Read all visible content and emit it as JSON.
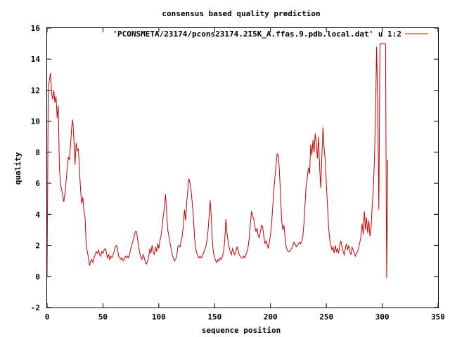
{
  "chart_data": {
    "type": "line",
    "title": "consensus based quality prediction",
    "xlabel": "sequence position",
    "ylabel": "quality",
    "xlim": [
      0,
      350
    ],
    "ylim": [
      -2,
      16
    ],
    "xticks": [
      "0",
      "50",
      "100",
      "150",
      "200",
      "250",
      "300",
      "350"
    ],
    "yticks": [
      "-2",
      "0",
      "2",
      "4",
      "6",
      "8",
      "10",
      "12",
      "14",
      "16"
    ],
    "legend_position": "top-right",
    "grid": false,
    "series": [
      {
        "name": "'PCONSMETA/23174/pcons23174.2I5K_A.ffas.9.pdb.local.dat' u 1:2",
        "color": "#cc0000",
        "points": [
          [
            0,
            0
          ],
          [
            1,
            12.2
          ],
          [
            2,
            12.6
          ],
          [
            3,
            13.1
          ],
          [
            4,
            11.8
          ],
          [
            5,
            11.4
          ],
          [
            6,
            12.0
          ],
          [
            7,
            11.2
          ],
          [
            8,
            11.6
          ],
          [
            9,
            10.2
          ],
          [
            10,
            11.0
          ],
          [
            11,
            7.0
          ],
          [
            12,
            5.9
          ],
          [
            13,
            5.6
          ],
          [
            14,
            5.2
          ],
          [
            15,
            4.8
          ],
          [
            16,
            5.4
          ],
          [
            17,
            6.1
          ],
          [
            18,
            7.0
          ],
          [
            19,
            7.7
          ],
          [
            20,
            7.5
          ],
          [
            21,
            8.5
          ],
          [
            22,
            9.6
          ],
          [
            23,
            10.1
          ],
          [
            24,
            8.8
          ],
          [
            25,
            7.2
          ],
          [
            26,
            8.6
          ],
          [
            27,
            8.1
          ],
          [
            28,
            8.2
          ],
          [
            29,
            6.8
          ],
          [
            30,
            5.5
          ],
          [
            31,
            4.7
          ],
          [
            32,
            5.1
          ],
          [
            33,
            4.2
          ],
          [
            34,
            3.8
          ],
          [
            35,
            2.0
          ],
          [
            36,
            1.6
          ],
          [
            37,
            1.2
          ],
          [
            38,
            0.7
          ],
          [
            39,
            1.0
          ],
          [
            40,
            1.1
          ],
          [
            41,
            0.9
          ],
          [
            42,
            1.2
          ],
          [
            43,
            1.4
          ],
          [
            44,
            1.6
          ],
          [
            45,
            1.5
          ],
          [
            46,
            1.7
          ],
          [
            47,
            1.4
          ],
          [
            48,
            1.3
          ],
          [
            49,
            1.6
          ],
          [
            50,
            1.5
          ],
          [
            51,
            1.7
          ],
          [
            52,
            1.8
          ],
          [
            53,
            1.6
          ],
          [
            54,
            1.2
          ],
          [
            55,
            1.4
          ],
          [
            56,
            1.1
          ],
          [
            57,
            1.3
          ],
          [
            58,
            1.2
          ],
          [
            59,
            1.4
          ],
          [
            60,
            1.6
          ],
          [
            61,
            1.9
          ],
          [
            62,
            2.0
          ],
          [
            63,
            1.8
          ],
          [
            64,
            1.3
          ],
          [
            65,
            1.2
          ],
          [
            66,
            1.1
          ],
          [
            67,
            1.2
          ],
          [
            68,
            1.0
          ],
          [
            69,
            1.1
          ],
          [
            70,
            1.3
          ],
          [
            71,
            1.2
          ],
          [
            72,
            1.3
          ],
          [
            73,
            1.2
          ],
          [
            74,
            1.5
          ],
          [
            75,
            1.8
          ],
          [
            76,
            2.1
          ],
          [
            77,
            2.3
          ],
          [
            78,
            2.6
          ],
          [
            79,
            2.9
          ],
          [
            80,
            2.9
          ],
          [
            81,
            2.4
          ],
          [
            82,
            1.9
          ],
          [
            83,
            1.5
          ],
          [
            84,
            1.2
          ],
          [
            85,
            1.1
          ],
          [
            86,
            1.4
          ],
          [
            87,
            1.2
          ],
          [
            88,
            0.9
          ],
          [
            89,
            0.8
          ],
          [
            90,
            1.0
          ],
          [
            91,
            1.3
          ],
          [
            92,
            1.8
          ],
          [
            93,
            1.5
          ],
          [
            94,
            2.0
          ],
          [
            95,
            1.6
          ],
          [
            96,
            1.4
          ],
          [
            97,
            1.9
          ],
          [
            98,
            1.6
          ],
          [
            99,
            2.1
          ],
          [
            100,
            1.8
          ],
          [
            101,
            2.3
          ],
          [
            102,
            2.6
          ],
          [
            103,
            3.2
          ],
          [
            104,
            3.9
          ],
          [
            105,
            4.4
          ],
          [
            106,
            5.3
          ],
          [
            107,
            4.1
          ],
          [
            108,
            3.0
          ],
          [
            109,
            2.6
          ],
          [
            110,
            2.2
          ],
          [
            111,
            1.8
          ],
          [
            112,
            1.4
          ],
          [
            113,
            1.2
          ],
          [
            114,
            1.0
          ],
          [
            115,
            1.1
          ],
          [
            116,
            1.3
          ],
          [
            117,
            1.9
          ],
          [
            118,
            2.0
          ],
          [
            119,
            1.9
          ],
          [
            120,
            2.3
          ],
          [
            121,
            2.6
          ],
          [
            122,
            3.3
          ],
          [
            123,
            4.3
          ],
          [
            124,
            3.6
          ],
          [
            125,
            4.8
          ],
          [
            126,
            5.6
          ],
          [
            127,
            6.3
          ],
          [
            128,
            6.0
          ],
          [
            129,
            5.5
          ],
          [
            130,
            4.7
          ],
          [
            131,
            3.8
          ],
          [
            132,
            2.5
          ],
          [
            133,
            1.8
          ],
          [
            134,
            1.5
          ],
          [
            135,
            1.3
          ],
          [
            136,
            1.2
          ],
          [
            137,
            1.3
          ],
          [
            138,
            1.2
          ],
          [
            139,
            1.3
          ],
          [
            140,
            1.5
          ],
          [
            141,
            1.7
          ],
          [
            142,
            1.9
          ],
          [
            143,
            2.3
          ],
          [
            144,
            2.9
          ],
          [
            145,
            3.8
          ],
          [
            146,
            4.9
          ],
          [
            147,
            3.8
          ],
          [
            148,
            2.2
          ],
          [
            149,
            1.5
          ],
          [
            150,
            1.2
          ],
          [
            151,
            1.0
          ],
          [
            152,
            0.9
          ],
          [
            153,
            1.1
          ],
          [
            154,
            1.0
          ],
          [
            155,
            1.2
          ],
          [
            156,
            1.1
          ],
          [
            157,
            1.3
          ],
          [
            158,
            1.6
          ],
          [
            159,
            2.3
          ],
          [
            160,
            3.7
          ],
          [
            161,
            2.8
          ],
          [
            162,
            2.3
          ],
          [
            163,
            1.9
          ],
          [
            164,
            1.6
          ],
          [
            165,
            1.4
          ],
          [
            166,
            1.8
          ],
          [
            167,
            1.6
          ],
          [
            168,
            1.4
          ],
          [
            169,
            1.6
          ],
          [
            170,
            1.9
          ],
          [
            171,
            1.7
          ],
          [
            172,
            1.4
          ],
          [
            173,
            1.3
          ],
          [
            174,
            1.2
          ],
          [
            175,
            1.2
          ],
          [
            176,
            1.3
          ],
          [
            177,
            1.2
          ],
          [
            178,
            1.4
          ],
          [
            179,
            1.6
          ],
          [
            180,
            1.9
          ],
          [
            181,
            2.5
          ],
          [
            182,
            3.4
          ],
          [
            183,
            4.2
          ],
          [
            184,
            3.9
          ],
          [
            185,
            3.7
          ],
          [
            186,
            3.2
          ],
          [
            187,
            2.9
          ],
          [
            188,
            3.1
          ],
          [
            189,
            2.6
          ],
          [
            190,
            2.5
          ],
          [
            191,
            2.9
          ],
          [
            192,
            3.3
          ],
          [
            193,
            3.2
          ],
          [
            194,
            2.6
          ],
          [
            195,
            2.1
          ],
          [
            196,
            2.3
          ],
          [
            197,
            2.1
          ],
          [
            198,
            1.8
          ],
          [
            199,
            2.2
          ],
          [
            200,
            2.7
          ],
          [
            201,
            3.4
          ],
          [
            202,
            4.5
          ],
          [
            203,
            5.6
          ],
          [
            204,
            6.4
          ],
          [
            205,
            7.2
          ],
          [
            206,
            7.9
          ],
          [
            207,
            7.8
          ],
          [
            208,
            6.8
          ],
          [
            209,
            5.2
          ],
          [
            210,
            3.6
          ],
          [
            211,
            3.0
          ],
          [
            212,
            3.3
          ],
          [
            213,
            2.6
          ],
          [
            214,
            1.9
          ],
          [
            215,
            1.7
          ],
          [
            216,
            1.6
          ],
          [
            217,
            1.6
          ],
          [
            218,
            1.7
          ],
          [
            219,
            1.8
          ],
          [
            220,
            2.0
          ],
          [
            221,
            2.2
          ],
          [
            222,
            2.1
          ],
          [
            223,
            1.9
          ],
          [
            224,
            2.0
          ],
          [
            225,
            2.1
          ],
          [
            226,
            2.2
          ],
          [
            227,
            2.1
          ],
          [
            228,
            2.3
          ],
          [
            229,
            2.6
          ],
          [
            230,
            3.5
          ],
          [
            231,
            4.8
          ],
          [
            232,
            5.9
          ],
          [
            233,
            6.4
          ],
          [
            234,
            7.0
          ],
          [
            235,
            6.6
          ],
          [
            236,
            8.5
          ],
          [
            237,
            7.8
          ],
          [
            238,
            8.8
          ],
          [
            239,
            8.0
          ],
          [
            240,
            9.2
          ],
          [
            241,
            8.6
          ],
          [
            242,
            7.6
          ],
          [
            243,
            9.0
          ],
          [
            244,
            7.0
          ],
          [
            245,
            5.7
          ],
          [
            246,
            7.8
          ],
          [
            247,
            9.6
          ],
          [
            248,
            8.2
          ],
          [
            249,
            7.5
          ],
          [
            250,
            6.0
          ],
          [
            251,
            4.6
          ],
          [
            252,
            3.2
          ],
          [
            253,
            2.4
          ],
          [
            254,
            2.0
          ],
          [
            255,
            1.7
          ],
          [
            256,
            1.9
          ],
          [
            257,
            1.5
          ],
          [
            258,
            2.0
          ],
          [
            259,
            1.6
          ],
          [
            260,
            1.8
          ],
          [
            261,
            1.5
          ],
          [
            262,
            2.0
          ],
          [
            263,
            2.3
          ],
          [
            264,
            1.9
          ],
          [
            265,
            1.6
          ],
          [
            266,
            1.4
          ],
          [
            267,
            1.8
          ],
          [
            268,
            2.1
          ],
          [
            269,
            1.7
          ],
          [
            270,
            2.0
          ],
          [
            271,
            1.6
          ],
          [
            272,
            1.4
          ],
          [
            273,
            1.9
          ],
          [
            274,
            1.7
          ],
          [
            275,
            1.5
          ],
          [
            276,
            1.3
          ],
          [
            277,
            1.5
          ],
          [
            278,
            1.6
          ],
          [
            279,
            1.9
          ],
          [
            280,
            2.2
          ],
          [
            281,
            2.6
          ],
          [
            282,
            3.4
          ],
          [
            283,
            2.7
          ],
          [
            284,
            4.2
          ],
          [
            285,
            3.0
          ],
          [
            286,
            3.8
          ],
          [
            287,
            2.8
          ],
          [
            288,
            3.6
          ],
          [
            289,
            2.6
          ],
          [
            290,
            3.1
          ],
          [
            291,
            4.5
          ],
          [
            292,
            5.6
          ],
          [
            293,
            7.5
          ],
          [
            294,
            10.2
          ],
          [
            295,
            14.8
          ],
          [
            296,
            11.0
          ],
          [
            297,
            4.3
          ],
          [
            298,
            15.0
          ],
          [
            299,
            15.0
          ],
          [
            300,
            15.0
          ],
          [
            301,
            15.0
          ],
          [
            302,
            15.0
          ],
          [
            303,
            15.0
          ],
          [
            304,
            -0.1
          ],
          [
            305,
            7.5
          ]
        ]
      }
    ]
  }
}
